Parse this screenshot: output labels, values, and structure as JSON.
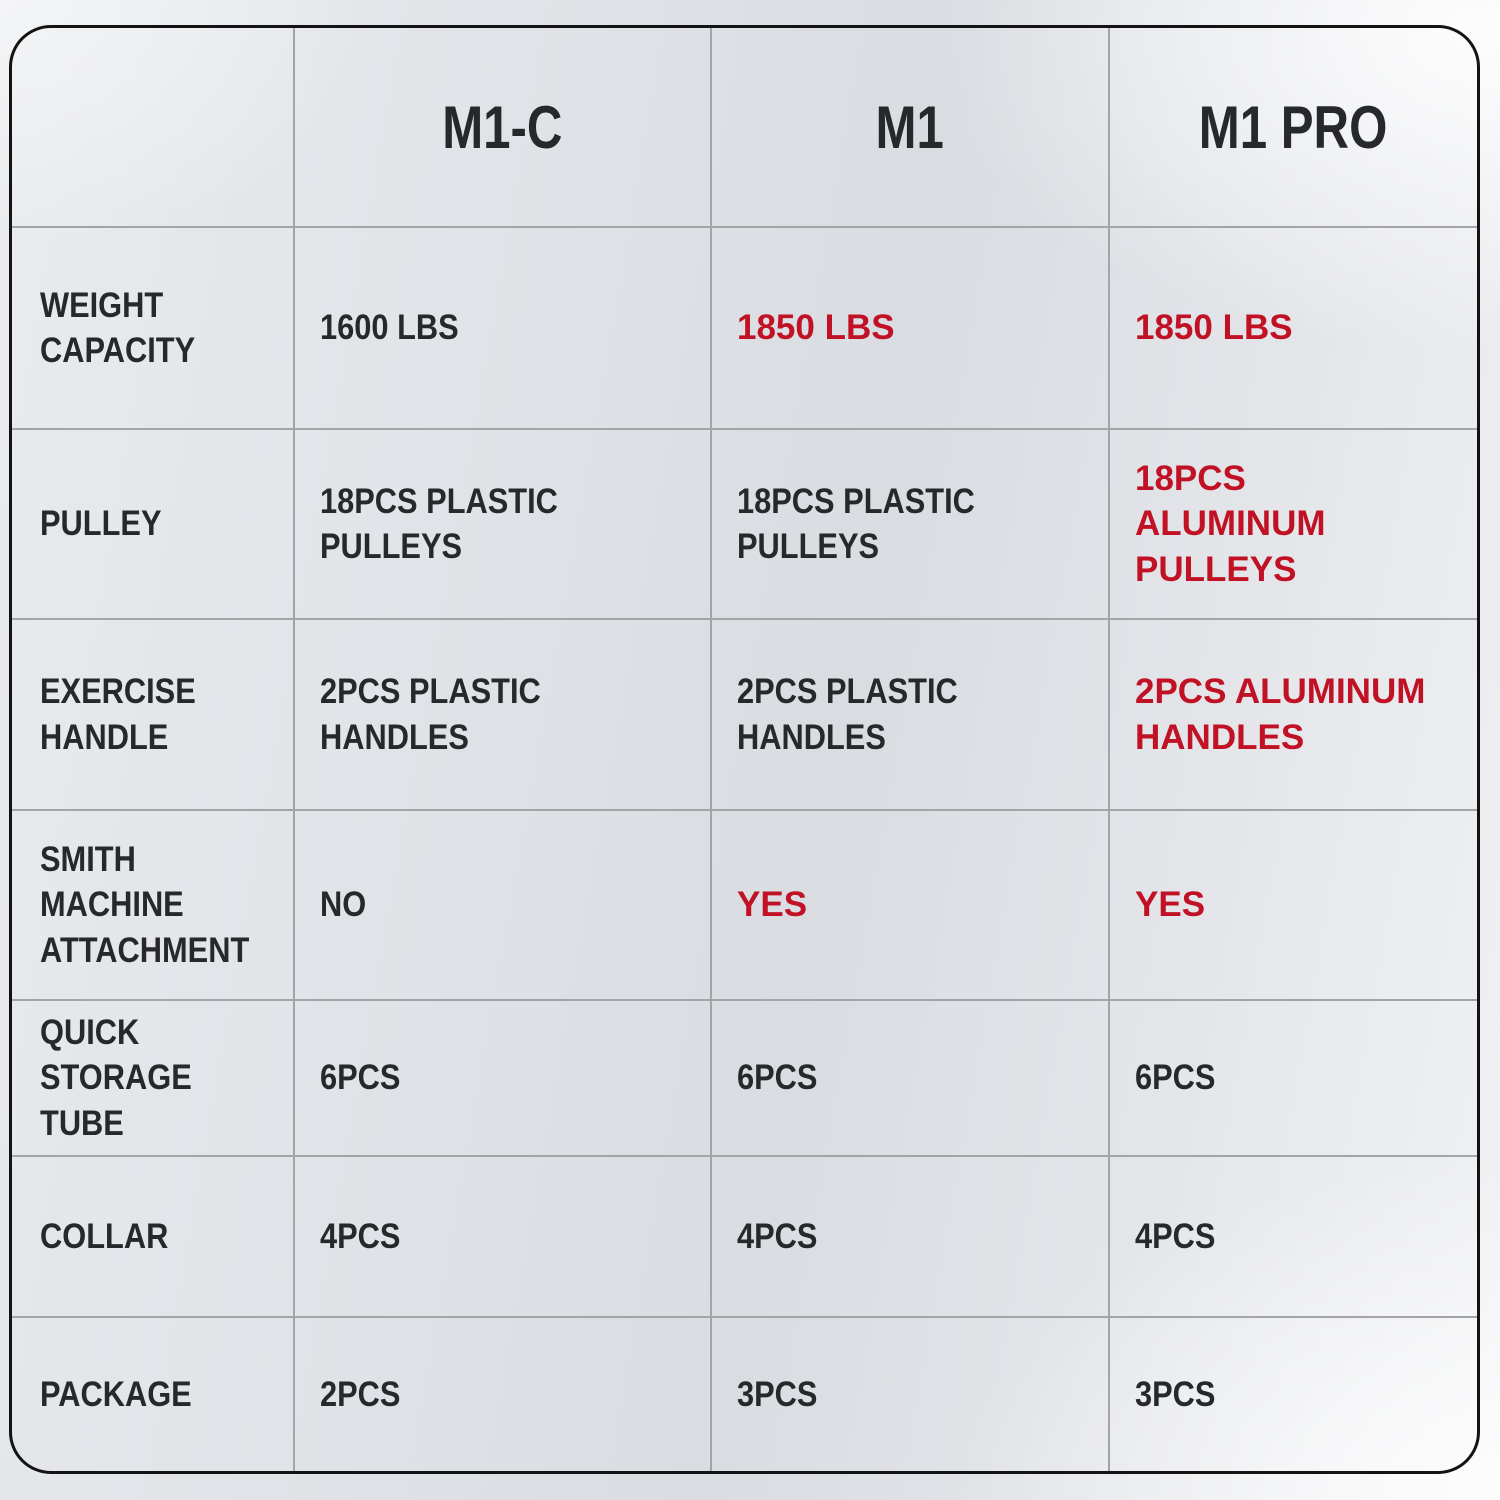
{
  "colors": {
    "highlight_red": "#c11225",
    "text_dark": "#27282a",
    "grid_line": "#a2a4a7",
    "border_black": "#131313"
  },
  "chart_data": {
    "type": "table",
    "title": "Product comparison table",
    "columns": [
      "",
      "M1-C",
      "M1",
      "M1 PRO"
    ],
    "rows": [
      {
        "label": "WEIGHT\nCAPACITY",
        "values": [
          {
            "text": "1600 LBS",
            "highlight": false
          },
          {
            "text": "1850 LBS",
            "highlight": true
          },
          {
            "text": "1850 LBS",
            "highlight": true
          }
        ]
      },
      {
        "label": "PULLEY",
        "values": [
          {
            "text": "18PCS PLASTIC\nPULLEYS",
            "highlight": false
          },
          {
            "text": "18PCS PLASTIC\nPULLEYS",
            "highlight": false
          },
          {
            "text": "18PCS\nALUMINUM PULLEYS",
            "highlight": true
          }
        ]
      },
      {
        "label": "EXERCISE\nHANDLE",
        "values": [
          {
            "text": "2PCS PLASTIC\nHANDLES",
            "highlight": false
          },
          {
            "text": "2PCS PLASTIC\nHANDLES",
            "highlight": false
          },
          {
            "text": "2PCS ALUMINUM\nHANDLES",
            "highlight": true
          }
        ]
      },
      {
        "label": "SMITH MACHINE\nATTACHMENT",
        "values": [
          {
            "text": "NO",
            "highlight": false
          },
          {
            "text": "YES",
            "highlight": true
          },
          {
            "text": "YES",
            "highlight": true
          }
        ]
      },
      {
        "label": "QUICK\nSTORAGE TUBE",
        "values": [
          {
            "text": "6PCS",
            "highlight": false
          },
          {
            "text": "6PCS",
            "highlight": false
          },
          {
            "text": "6PCS",
            "highlight": false
          }
        ]
      },
      {
        "label": "COLLAR",
        "values": [
          {
            "text": "4PCS",
            "highlight": false
          },
          {
            "text": "4PCS",
            "highlight": false
          },
          {
            "text": "4PCS",
            "highlight": false
          }
        ]
      },
      {
        "label": "PACKAGE",
        "values": [
          {
            "text": "2PCS",
            "highlight": false
          },
          {
            "text": "3PCS",
            "highlight": false
          },
          {
            "text": "3PCS",
            "highlight": false
          }
        ]
      }
    ]
  }
}
